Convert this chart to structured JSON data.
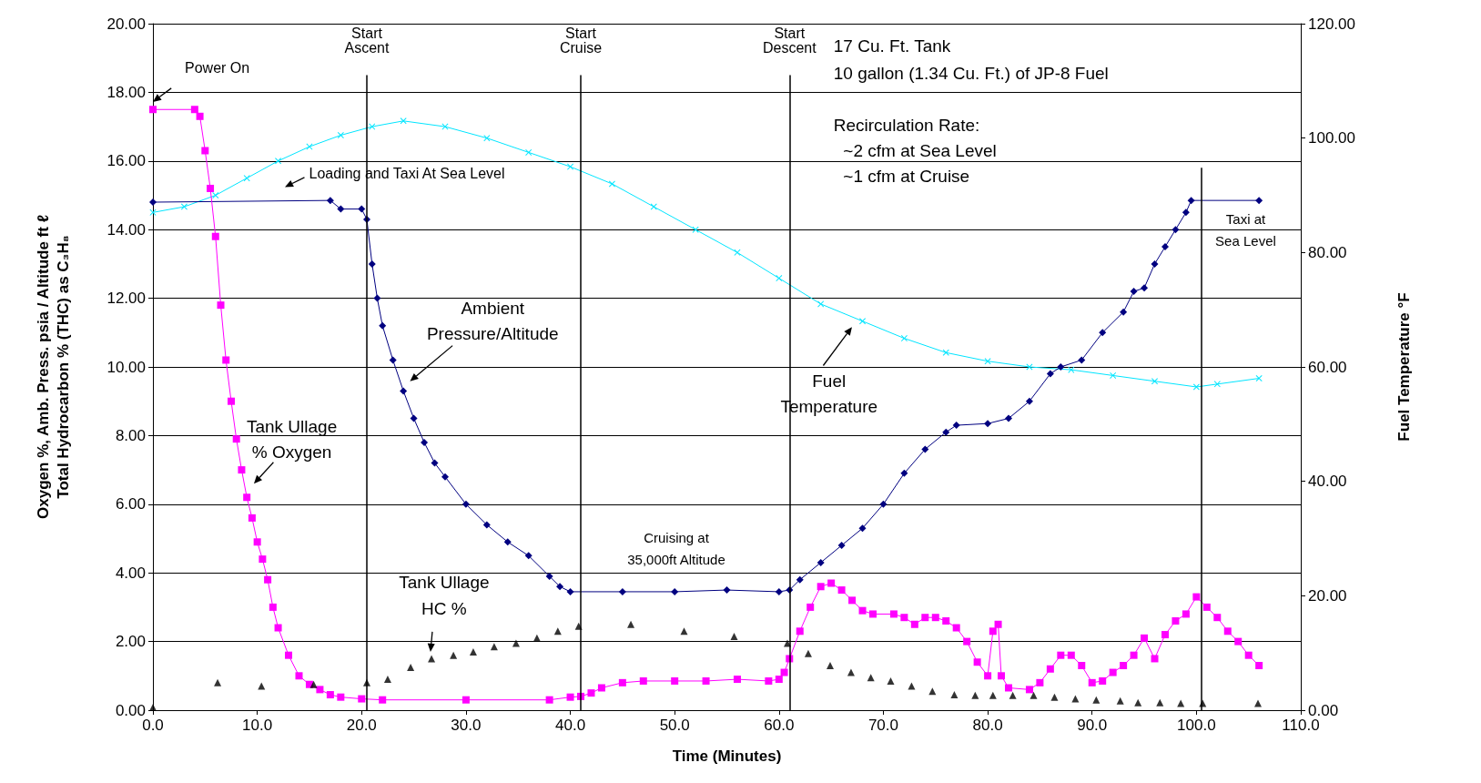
{
  "chart_data": {
    "type": "line",
    "xlabel": "Time (Minutes)",
    "ylabel": "Oxygen %, Amb. Press. psia / Altitude ft ℓ\nTotal Hydrocarbon % (THC) as C₃H₈",
    "y2label": "Fuel Temperature °F",
    "xlim": [
      0,
      110
    ],
    "xticks": [
      {
        "value": 0,
        "label": "0.0"
      },
      {
        "value": 10,
        "label": "10.0"
      },
      {
        "value": 20,
        "label": "20.0"
      },
      {
        "value": 30,
        "label": "30.0"
      },
      {
        "value": 40,
        "label": "40.0"
      },
      {
        "value": 50,
        "label": "50.0"
      },
      {
        "value": 60,
        "label": "60.0"
      },
      {
        "value": 70,
        "label": "70.0"
      },
      {
        "value": 80,
        "label": "80.0"
      },
      {
        "value": 90,
        "label": "90.0"
      },
      {
        "value": 100,
        "label": "100.0"
      },
      {
        "value": 110,
        "label": "110.0"
      }
    ],
    "ylim": [
      0,
      20
    ],
    "yticks": [
      {
        "value": 0,
        "label": "0.00"
      },
      {
        "value": 2,
        "label": "2.00"
      },
      {
        "value": 4,
        "label": "4.00"
      },
      {
        "value": 6,
        "label": "6.00"
      },
      {
        "value": 8,
        "label": "8.00"
      },
      {
        "value": 10,
        "label": "10.00"
      },
      {
        "value": 12,
        "label": "12.00"
      },
      {
        "value": 14,
        "label": "14.00"
      },
      {
        "value": 16,
        "label": "16.00"
      },
      {
        "value": 18,
        "label": "18.00"
      },
      {
        "value": 20,
        "label": "20.00"
      }
    ],
    "y2lim": [
      0,
      120
    ],
    "y2ticks": [
      {
        "value": 0,
        "label": "0.00"
      },
      {
        "value": 20,
        "label": "20.00"
      },
      {
        "value": 40,
        "label": "40.00"
      },
      {
        "value": 60,
        "label": "60.00"
      },
      {
        "value": 80,
        "label": "80.00"
      },
      {
        "value": 100,
        "label": "100.00"
      },
      {
        "value": 120,
        "label": "120.00"
      }
    ],
    "grid": "y",
    "line_style": "solid",
    "series": [
      {
        "color": "#00e5ff",
        "axis": "y2",
        "marker": "cross",
        "x": [
          0,
          3,
          6,
          9,
          12,
          15,
          18,
          21,
          24,
          28,
          32,
          36,
          40,
          44,
          48,
          52,
          56,
          60,
          64,
          68,
          72,
          76,
          80,
          84,
          88,
          92,
          96,
          100,
          102,
          106
        ],
        "values": [
          87,
          88,
          90,
          93,
          96,
          98.5,
          100.5,
          102,
          103,
          102,
          100,
          97.5,
          95,
          92,
          88,
          84,
          80,
          75.5,
          71,
          68,
          65,
          62.5,
          61,
          60,
          59.5,
          58.5,
          57.5,
          56.5,
          57,
          58
        ]
      },
      {
        "color": "#000080",
        "marker": "diamond",
        "x": [
          0,
          17,
          18,
          20,
          20.5,
          21,
          21.5,
          22,
          23,
          24,
          25,
          26,
          27,
          28,
          30,
          32,
          34,
          36,
          38,
          39,
          40,
          45,
          50,
          55,
          60,
          61,
          62,
          64,
          66,
          68,
          70,
          72,
          74,
          76,
          77,
          80,
          82,
          84,
          86,
          87,
          89,
          91,
          93,
          94,
          95,
          96,
          97,
          98,
          99,
          99.5,
          106
        ],
        "values": [
          14.8,
          14.85,
          14.6,
          14.6,
          14.3,
          13,
          12,
          11.2,
          10.2,
          9.3,
          8.5,
          7.8,
          7.2,
          6.8,
          6,
          5.4,
          4.9,
          4.5,
          3.9,
          3.6,
          3.45,
          3.45,
          3.45,
          3.5,
          3.45,
          3.5,
          3.8,
          4.3,
          4.8,
          5.3,
          6,
          6.9,
          7.6,
          8.1,
          8.3,
          8.35,
          8.5,
          9,
          9.8,
          10,
          10.2,
          11,
          11.6,
          12.2,
          12.3,
          13,
          13.5,
          14,
          14.5,
          14.85,
          14.85
        ]
      },
      {
        "color": "#ff00ff",
        "marker": "square",
        "x": [
          0,
          4,
          4.5,
          5,
          5.5,
          6,
          6.5,
          7,
          7.5,
          8,
          8.5,
          9,
          9.5,
          10,
          10.5,
          11,
          11.5,
          12,
          13,
          14,
          15,
          16,
          17,
          18,
          20,
          22,
          30,
          38,
          40,
          41,
          42,
          43,
          45,
          47,
          50,
          53,
          56,
          59,
          60,
          60.5,
          61,
          62,
          63,
          64,
          65,
          66,
          67,
          68,
          69,
          71,
          72,
          73,
          74,
          75,
          76,
          77,
          78,
          79,
          80,
          80.5,
          81,
          81.3,
          82,
          84,
          85,
          86,
          87,
          88,
          89,
          90,
          91,
          92,
          93,
          94,
          95,
          96,
          97,
          98,
          99,
          100,
          101,
          102,
          103,
          104,
          105,
          106
        ],
        "values": [
          17.5,
          17.5,
          17.3,
          16.3,
          15.2,
          13.8,
          11.8,
          10.2,
          9,
          7.9,
          7,
          6.2,
          5.6,
          4.9,
          4.4,
          3.8,
          3,
          2.4,
          1.6,
          1,
          0.75,
          0.6,
          0.45,
          0.38,
          0.33,
          0.3,
          0.3,
          0.3,
          0.38,
          0.4,
          0.5,
          0.65,
          0.8,
          0.85,
          0.85,
          0.85,
          0.9,
          0.85,
          0.9,
          1.1,
          1.5,
          2.3,
          3,
          3.6,
          3.7,
          3.5,
          3.2,
          2.9,
          2.8,
          2.8,
          2.7,
          2.5,
          2.7,
          2.7,
          2.6,
          2.4,
          2,
          1.4,
          1,
          2.3,
          2.5,
          1,
          0.65,
          0.6,
          0.8,
          1.2,
          1.6,
          1.6,
          1.3,
          0.8,
          0.85,
          1.1,
          1.3,
          1.6,
          2.1,
          1.5,
          2.2,
          2.6,
          2.8,
          3.3,
          3,
          2.7,
          2.3,
          2,
          1.6,
          1.3
        ]
      },
      {
        "type": "scatter",
        "color": "#000000",
        "marker": "triangle",
        "x": [
          0,
          6.2,
          10.4,
          15.4,
          20.5,
          22.5,
          24.7,
          26.7,
          28.8,
          30.7,
          32.7,
          34.8,
          36.8,
          38.8,
          40.8,
          45.8,
          50.9,
          55.7,
          60.8,
          62.8,
          64.9,
          66.9,
          68.8,
          70.7,
          72.7,
          74.7,
          76.8,
          78.8,
          80.5,
          82.4,
          84.4,
          86.4,
          88.4,
          90.4,
          92.7,
          94.4,
          96.5,
          98.5,
          100.6,
          105.9
        ],
        "values": [
          0.08,
          0.8,
          0.7,
          0.75,
          0.8,
          0.9,
          1.25,
          1.5,
          1.6,
          1.7,
          1.85,
          1.95,
          2.1,
          2.3,
          2.45,
          2.5,
          2.3,
          2.15,
          1.95,
          1.65,
          1.3,
          1.1,
          0.95,
          0.85,
          0.7,
          0.55,
          0.45,
          0.43,
          0.43,
          0.43,
          0.43,
          0.38,
          0.33,
          0.3,
          0.27,
          0.22,
          0.22,
          0.2,
          0.2,
          0.2
        ]
      }
    ],
    "ref_lines": [
      {
        "axis": "x",
        "value": 20.5,
        "label": "Start\nAscent"
      },
      {
        "axis": "x",
        "value": 41,
        "label": "Start\nCruise"
      },
      {
        "axis": "x",
        "value": 61,
        "label": "Start\nDescent"
      },
      {
        "axis": "x",
        "value": 100.5,
        "label": null
      }
    ],
    "annotations": [
      "Power On",
      "Loading and Taxi At Sea Level",
      "Ambient\nPressure/Altitude",
      "Tank Ullage\n% Oxygen",
      "Fuel\nTemperature",
      {
        "text": "Tank Ullage\nHC %",
        "x": 26.6,
        "y": 1.7
      },
      "Cruising at\n35,000ft Altitude",
      "Taxi at\nSea Level",
      "17 Cu. Ft. Tank",
      "10 gallon (1.34 Cu. Ft.) of JP-8 Fuel",
      "Recirculation Rate:\n  ~2 cfm at Sea Level\n  ~1 cfm at Cruise"
    ]
  }
}
